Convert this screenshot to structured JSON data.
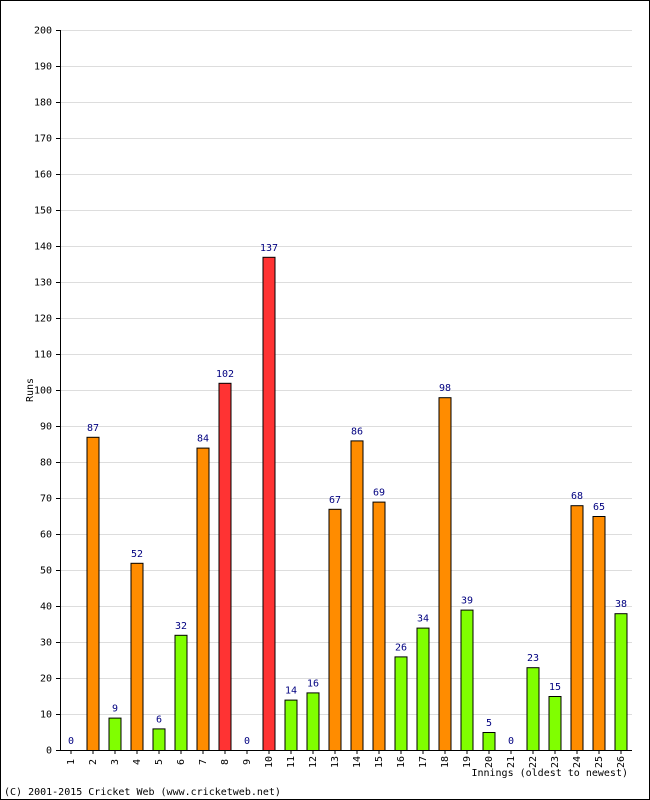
{
  "chart_data": {
    "type": "bar",
    "categories": [
      "1",
      "2",
      "3",
      "4",
      "5",
      "6",
      "7",
      "8",
      "9",
      "10",
      "11",
      "12",
      "13",
      "14",
      "15",
      "16",
      "17",
      "18",
      "19",
      "20",
      "21",
      "22",
      "23",
      "24",
      "25",
      "26"
    ],
    "values": [
      0,
      87,
      9,
      52,
      6,
      32,
      84,
      102,
      0,
      137,
      14,
      16,
      67,
      86,
      69,
      26,
      34,
      98,
      39,
      5,
      0,
      23,
      15,
      68,
      65,
      38
    ],
    "colors": [
      "#80ff00",
      "#ff8c00",
      "#80ff00",
      "#ff8c00",
      "#80ff00",
      "#80ff00",
      "#ff8c00",
      "#ff3333",
      "#80ff00",
      "#ff3333",
      "#80ff00",
      "#80ff00",
      "#ff8c00",
      "#ff8c00",
      "#ff8c00",
      "#80ff00",
      "#80ff00",
      "#ff8c00",
      "#80ff00",
      "#80ff00",
      "#80ff00",
      "#80ff00",
      "#80ff00",
      "#ff8c00",
      "#ff8c00",
      "#80ff00"
    ],
    "ylabel": "Runs",
    "xlabel": "Innings (oldest to newest)",
    "footer": "(C) 2001-2015 Cricket Web (www.cricketweb.net)",
    "ylim": [
      0,
      200
    ],
    "yticks": [
      0,
      10,
      20,
      30,
      40,
      50,
      60,
      70,
      80,
      90,
      100,
      110,
      120,
      130,
      140,
      150,
      160,
      170,
      180,
      190,
      200
    ],
    "grid": true
  }
}
